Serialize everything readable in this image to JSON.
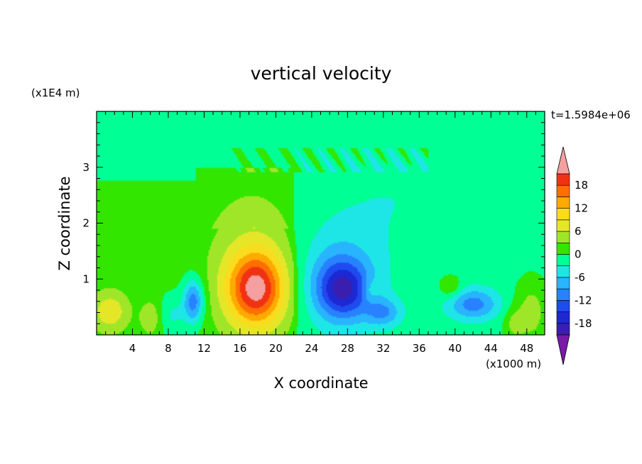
{
  "chart_data": {
    "type": "heatmap",
    "title": "vertical velocity",
    "xlabel": "X coordinate",
    "ylabel": "Z coordinate",
    "x_unit": "(x1000 m)",
    "y_unit": "(x1E4 m)",
    "time_label": "t=1.5984e+06",
    "xlim": [
      0,
      50
    ],
    "ylim": [
      0,
      4
    ],
    "x_ticks": [
      4,
      8,
      12,
      16,
      20,
      24,
      28,
      32,
      36,
      40,
      44,
      48
    ],
    "y_ticks": [
      1,
      2,
      3
    ],
    "colorbar": {
      "levels": [
        -21,
        -18,
        -15,
        -12,
        -9,
        -6,
        -3,
        0,
        3,
        6,
        9,
        12,
        15,
        18,
        21
      ],
      "labels": [
        18,
        12,
        6,
        0,
        -6,
        -12,
        -18
      ],
      "colors": [
        "#7a1aa8",
        "#3a1eb0",
        "#1e28d2",
        "#1e4bf0",
        "#2882ff",
        "#28b4ff",
        "#1ee6e6",
        "#00ff94",
        "#32e600",
        "#a0e628",
        "#e6e628",
        "#fadc1e",
        "#ffaa00",
        "#ff6e00",
        "#f03214",
        "#f5a0a0"
      ],
      "extend_low_color": "#7a1aa8",
      "extend_high_color": "#f5a0a0"
    },
    "features": [
      {
        "x": 17.8,
        "z": 0.82,
        "peak": 17.0,
        "sx": 2.2,
        "sz": 0.45
      },
      {
        "x": 17.5,
        "z": 1.1,
        "peak": 6.0,
        "sx": 3.6,
        "sz": 0.9
      },
      {
        "x": 1.5,
        "z": 0.42,
        "peak": 7.5,
        "sx": 1.6,
        "sz": 0.28
      },
      {
        "x": 6.0,
        "z": 0.3,
        "peak": 5.0,
        "sx": 0.8,
        "sz": 0.22
      },
      {
        "x": 10.8,
        "z": 0.6,
        "peak": -12.0,
        "sx": 0.8,
        "sz": 0.28
      },
      {
        "x": 8.5,
        "z": 0.35,
        "peak": -4.0,
        "sx": 1.0,
        "sz": 0.25
      },
      {
        "x": 27.5,
        "z": 0.8,
        "peak": -12.5,
        "sx": 2.0,
        "sz": 0.35
      },
      {
        "x": 27.0,
        "z": 1.0,
        "peak": -7.0,
        "sx": 3.2,
        "sz": 0.6
      },
      {
        "x": 32.0,
        "z": 0.4,
        "peak": -7.5,
        "sx": 1.4,
        "sz": 0.18
      },
      {
        "x": 30.5,
        "z": 0.8,
        "peak": 3.5,
        "sx": 0.6,
        "sz": 0.15
      },
      {
        "x": 42.0,
        "z": 0.55,
        "peak": -9.5,
        "sx": 2.0,
        "sz": 0.2
      },
      {
        "x": 39.5,
        "z": 0.85,
        "peak": 4.5,
        "sx": 0.9,
        "sz": 0.15
      },
      {
        "x": 48.5,
        "z": 0.4,
        "peak": 5.5,
        "sx": 1.3,
        "sz": 0.4
      },
      {
        "x": 46.5,
        "z": 0.2,
        "peak": 4.0,
        "sx": 0.8,
        "sz": 0.2
      },
      {
        "x": 33.0,
        "z": 2.5,
        "peak": -2.0,
        "sx": 6.0,
        "sz": 0.8
      },
      {
        "x": 34.0,
        "z": 3.6,
        "peak": 1.0,
        "sx": 10.0,
        "sz": 0.5
      }
    ]
  }
}
